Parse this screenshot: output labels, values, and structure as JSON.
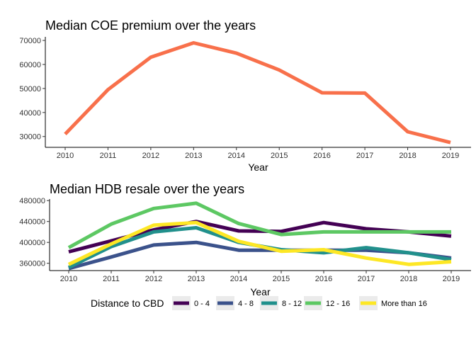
{
  "chart_data": [
    {
      "type": "line",
      "title": "Median COE premium over the years",
      "xlabel": "Year",
      "ylabel": "",
      "x": [
        2010,
        2011,
        2012,
        2013,
        2014,
        2015,
        2016,
        2017,
        2018,
        2019
      ],
      "x_tick_labels": [
        "2010",
        "2011",
        "2012",
        "2013",
        "2014",
        "2015",
        "2016",
        "2017",
        "2018",
        "2019"
      ],
      "y_ticks": [
        30000,
        40000,
        50000,
        60000,
        70000
      ],
      "y_tick_labels": [
        "30000",
        "40000",
        "50000",
        "60000",
        "70000"
      ],
      "ylim": [
        25500,
        71500
      ],
      "grid": false,
      "series": [
        {
          "color": "#F8704B",
          "values": [
            31000,
            49500,
            63000,
            69000,
            64700,
            57700,
            48200,
            48100,
            32000,
            27500
          ]
        }
      ]
    },
    {
      "type": "line",
      "title": "Median HDB resale over the years",
      "xlabel": "Year",
      "ylabel": "",
      "x": [
        2010,
        2011,
        2012,
        2013,
        2014,
        2015,
        2016,
        2017,
        2018,
        2019
      ],
      "x_tick_labels": [
        "2010",
        "2011",
        "2012",
        "2013",
        "2014",
        "2015",
        "2016",
        "2017",
        "2018",
        "2019"
      ],
      "y_ticks": [
        360000,
        400000,
        440000,
        480000
      ],
      "y_tick_labels": [
        "360000",
        "400000",
        "440000",
        "480000"
      ],
      "ylim": [
        346000,
        483000
      ],
      "grid": false,
      "legend_position": "bottom",
      "series": [
        {
          "name": "0 - 4",
          "color": "#440154",
          "values": [
            382000,
            403000,
            424000,
            440000,
            422000,
            421000,
            438000,
            426000,
            420000,
            412000
          ]
        },
        {
          "name": "4 - 8",
          "color": "#3B528B",
          "values": [
            350000,
            372000,
            395000,
            400000,
            385000,
            385000,
            385000,
            385000,
            380000,
            370000
          ]
        },
        {
          "name": "8 - 12",
          "color": "#21908C",
          "values": [
            352000,
            392000,
            420000,
            428000,
            400000,
            386000,
            380000,
            390000,
            380000,
            367000
          ]
        },
        {
          "name": "12 - 16",
          "color": "#5DC863",
          "values": [
            390000,
            435000,
            465000,
            475000,
            436000,
            415000,
            420000,
            420000,
            420000,
            420000
          ]
        },
        {
          "name": "More than 16",
          "color": "#FDE725",
          "values": [
            358000,
            397000,
            433000,
            438000,
            402000,
            383000,
            386000,
            370000,
            358000,
            363000
          ]
        }
      ]
    }
  ],
  "legend": {
    "title": "Distance to CBD",
    "key_background": "#EBEBEB"
  }
}
